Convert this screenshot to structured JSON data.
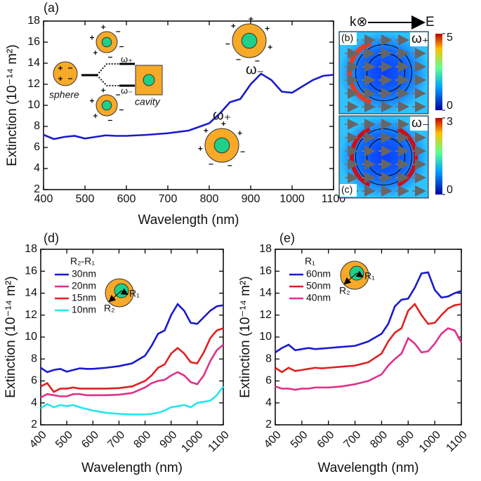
{
  "chart_data": [
    {
      "type": "line",
      "label": "(a)",
      "xlabel": "Wavelength (nm)",
      "ylabel": "Extinction (10⁻¹⁴ m²)",
      "x": [
        400,
        425,
        450,
        475,
        500,
        525,
        550,
        575,
        600,
        650,
        700,
        750,
        800,
        825,
        850,
        875,
        900,
        925,
        950,
        975,
        1000,
        1025,
        1050,
        1075,
        1100
      ],
      "values": [
        7.2,
        6.8,
        7.0,
        7.1,
        6.85,
        7.0,
        7.15,
        7.1,
        7.1,
        7.2,
        7.35,
        7.6,
        8.3,
        9.2,
        10.3,
        10.6,
        12.0,
        13.0,
        12.4,
        11.3,
        11.2,
        11.8,
        12.4,
        12.8,
        12.9
      ],
      "color": "#1a1acd",
      "xlim": [
        400,
        1100
      ],
      "ylim": [
        2,
        18
      ],
      "xticks": [
        400,
        500,
        600,
        700,
        800,
        900,
        1000,
        1100
      ],
      "yticks": [
        2,
        4,
        6,
        8,
        10,
        12,
        14,
        16,
        18
      ],
      "annotations": [
        "ω₋",
        "ω₊",
        "sphere",
        "cavity",
        "ω₊",
        "ω₋"
      ]
    },
    {
      "type": "line",
      "label": "(d)",
      "xlabel": "Wavelength (nm)",
      "ylabel": "Extinction (10⁻¹⁴ m²)",
      "legend_title": "R₂-R₁",
      "x": [
        400,
        425,
        450,
        475,
        500,
        525,
        550,
        575,
        600,
        650,
        700,
        750,
        800,
        825,
        850,
        875,
        900,
        925,
        950,
        975,
        1000,
        1025,
        1050,
        1075,
        1100
      ],
      "series": [
        {
          "name": "30nm",
          "color": "#1a1acd",
          "values": [
            7.2,
            6.8,
            7.0,
            7.1,
            6.85,
            7.0,
            7.15,
            7.1,
            7.1,
            7.2,
            7.35,
            7.6,
            8.3,
            9.2,
            10.3,
            10.6,
            12.0,
            13.0,
            12.4,
            11.3,
            11.2,
            11.8,
            12.4,
            12.8,
            12.9
          ]
        },
        {
          "name": "20nm",
          "color": "#e0308a",
          "values": [
            4.5,
            4.8,
            4.7,
            4.6,
            4.6,
            4.8,
            4.8,
            4.7,
            4.7,
            4.7,
            4.75,
            4.9,
            5.4,
            5.8,
            6.0,
            6.1,
            6.5,
            6.8,
            6.5,
            5.9,
            5.7,
            6.5,
            7.8,
            8.8,
            9.3
          ]
        },
        {
          "name": "15nm",
          "color": "#e02020",
          "values": [
            5.5,
            5.8,
            5.0,
            5.3,
            5.3,
            5.4,
            5.3,
            5.3,
            5.3,
            5.3,
            5.35,
            5.5,
            6.0,
            6.5,
            7.2,
            7.5,
            8.5,
            9.0,
            8.5,
            7.7,
            7.6,
            8.6,
            9.9,
            10.6,
            10.8
          ]
        },
        {
          "name": "10nm",
          "color": "#22e6f0",
          "values": [
            3.5,
            3.9,
            3.6,
            3.8,
            3.7,
            3.8,
            3.6,
            3.45,
            3.3,
            3.1,
            3.0,
            2.95,
            2.95,
            3.0,
            3.1,
            3.3,
            3.6,
            3.7,
            3.8,
            3.6,
            4.0,
            4.1,
            4.2,
            4.7,
            5.5
          ]
        }
      ],
      "xlim": [
        400,
        1100
      ],
      "ylim": [
        2,
        18
      ],
      "xticks": [
        400,
        500,
        600,
        700,
        800,
        900,
        1000,
        1100
      ],
      "yticks": [
        2,
        4,
        6,
        8,
        10,
        12,
        14,
        16,
        18
      ],
      "inset_labels": [
        "R₁",
        "R₂"
      ]
    },
    {
      "type": "line",
      "label": "(e)",
      "xlabel": "Wavelength (nm)",
      "ylabel": "Extinction (10⁻¹⁴ m²)",
      "legend_title": "R₁",
      "x": [
        400,
        425,
        450,
        475,
        500,
        525,
        550,
        575,
        600,
        650,
        700,
        750,
        800,
        825,
        850,
        875,
        900,
        925,
        950,
        975,
        1000,
        1025,
        1050,
        1075,
        1100
      ],
      "series": [
        {
          "name": "60nm",
          "color": "#1a1acd",
          "values": [
            8.6,
            9.0,
            9.3,
            8.8,
            8.9,
            9.0,
            8.9,
            8.95,
            9.0,
            9.1,
            9.2,
            9.6,
            10.3,
            11.2,
            12.8,
            13.4,
            13.5,
            14.5,
            15.8,
            15.9,
            14.3,
            13.6,
            13.7,
            14.0,
            14.2
          ]
        },
        {
          "name": "50nm",
          "color": "#e02020",
          "values": [
            7.2,
            6.8,
            7.2,
            6.9,
            7.0,
            7.1,
            7.2,
            7.15,
            7.2,
            7.3,
            7.4,
            7.7,
            8.5,
            9.6,
            10.4,
            10.8,
            12.4,
            13.0,
            12.0,
            11.2,
            11.3,
            12.0,
            12.6,
            12.9,
            13.0
          ]
        },
        {
          "name": "40nm",
          "color": "#e0308a",
          "values": [
            5.5,
            5.3,
            5.3,
            5.2,
            5.3,
            5.3,
            5.4,
            5.4,
            5.4,
            5.5,
            5.7,
            6.0,
            6.6,
            7.4,
            8.0,
            8.5,
            9.9,
            9.4,
            8.6,
            8.7,
            9.4,
            10.3,
            10.8,
            10.6,
            9.5
          ]
        }
      ],
      "xlim": [
        400,
        1100
      ],
      "ylim": [
        2,
        18
      ],
      "xticks": [
        400,
        500,
        600,
        700,
        800,
        900,
        1000,
        1100
      ],
      "yticks": [
        2,
        4,
        6,
        8,
        10,
        12,
        14,
        16,
        18
      ],
      "inset_labels": [
        "R₁",
        "R₂"
      ]
    }
  ],
  "field_maps": {
    "header": [
      "k⊗",
      "E"
    ],
    "panels": [
      {
        "label": "(b)",
        "mode": "ω₊",
        "colorbar_lim": [
          0,
          5
        ],
        "colorbar_ticks": [
          0,
          5
        ]
      },
      {
        "label": "(c)",
        "mode": "ω₋",
        "colorbar_lim": [
          0,
          3
        ],
        "colorbar_ticks": [
          0,
          3
        ]
      }
    ]
  }
}
